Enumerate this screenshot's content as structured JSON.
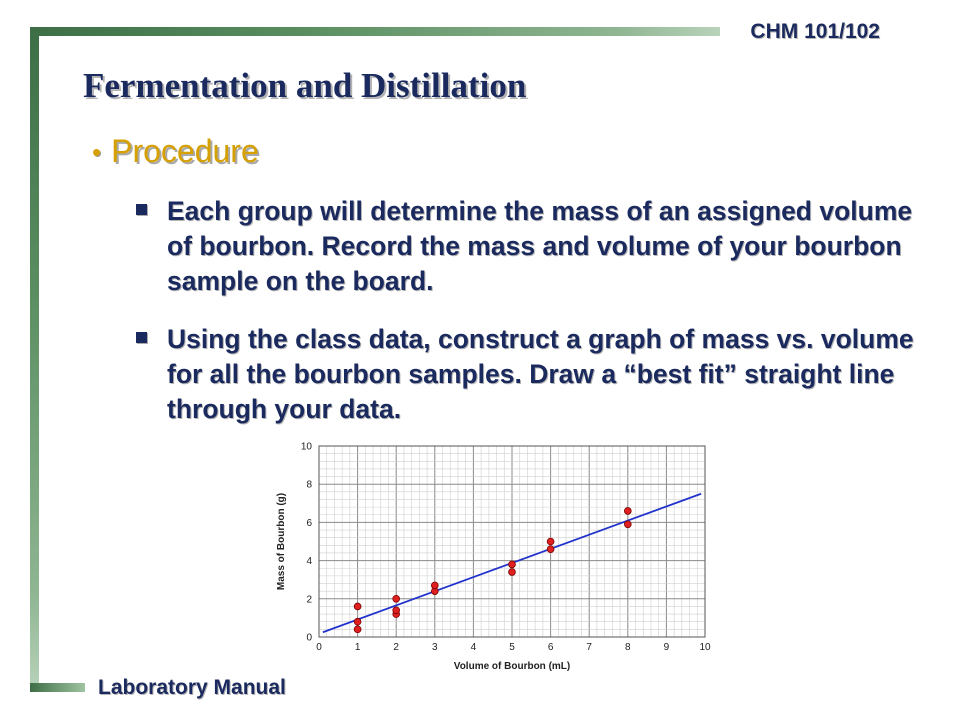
{
  "header": {
    "course_code": "CHM 101/102"
  },
  "title": "Fermentation and Distillation",
  "bullet": {
    "label": "Procedure",
    "sub_items": [
      "Each group will determine the mass of an assigned volume of bourbon. Record the mass and volume of your bourbon sample on the board.",
      "Using the class data, construct a graph of mass vs. volume for all the bourbon samples.  Draw a “best fit” straight line through your data."
    ]
  },
  "footer": {
    "label": "Laboratory Manual"
  },
  "colors": {
    "title": "#1b2a5e",
    "bullet": "#d6a100",
    "point": "#e02020",
    "line": "#2233cc"
  },
  "chart_data": {
    "type": "scatter",
    "xlabel": "Volume of Bourbon (mL)",
    "ylabel": "Mass of Bourbon (g)",
    "xlim": [
      0,
      10
    ],
    "ylim": [
      0,
      10
    ],
    "x_ticks": [
      "0",
      "1",
      "2",
      "3",
      "4",
      "5",
      "6",
      "7",
      "8",
      "9",
      "10"
    ],
    "y_ticks": [
      "0",
      "2",
      "4",
      "6",
      "8",
      "10"
    ],
    "grid": true,
    "points": [
      {
        "x": 1,
        "y": 0.4
      },
      {
        "x": 1,
        "y": 0.8
      },
      {
        "x": 1,
        "y": 1.6
      },
      {
        "x": 2,
        "y": 1.2
      },
      {
        "x": 2,
        "y": 1.4
      },
      {
        "x": 2,
        "y": 2.0
      },
      {
        "x": 3,
        "y": 2.4
      },
      {
        "x": 3,
        "y": 2.7
      },
      {
        "x": 5,
        "y": 3.4
      },
      {
        "x": 5,
        "y": 3.8
      },
      {
        "x": 6,
        "y": 4.6
      },
      {
        "x": 6,
        "y": 5.0
      },
      {
        "x": 8,
        "y": 5.9
      },
      {
        "x": 8,
        "y": 6.6
      }
    ],
    "fit_line": {
      "x": [
        0.1,
        9.9
      ],
      "y": [
        0.25,
        7.5
      ]
    }
  }
}
